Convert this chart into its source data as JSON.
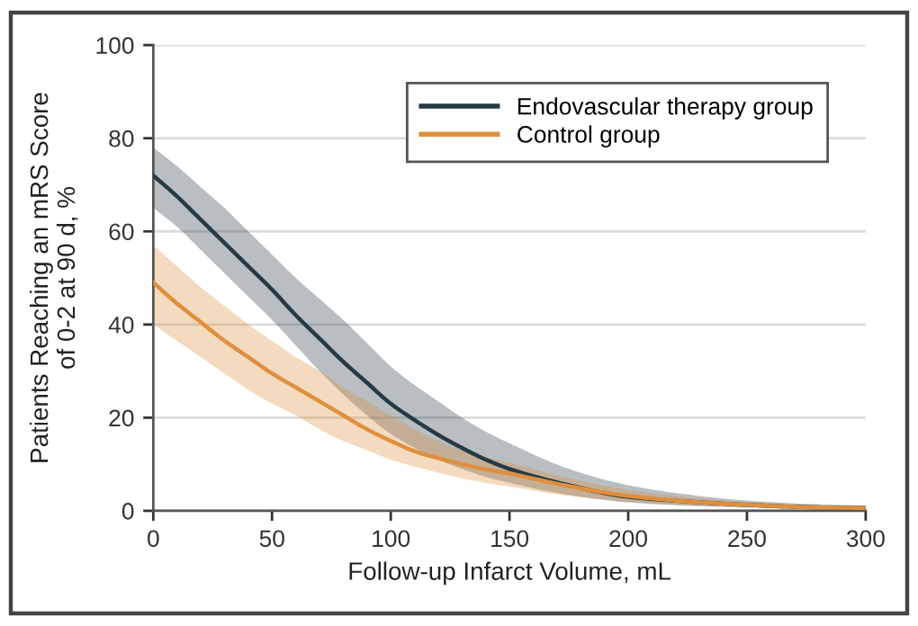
{
  "chart_data": {
    "type": "line",
    "xlabel": "Follow-up Infarct Volume, mL",
    "ylabel": "Patients Reaching an mRS Score\nof 0-2 at 90 d, %",
    "x": [
      0,
      10,
      20,
      30,
      40,
      50,
      60,
      70,
      80,
      90,
      100,
      110,
      120,
      130,
      140,
      150,
      175,
      200,
      225,
      250,
      275,
      300
    ],
    "series": [
      {
        "name": "Endovascular therapy group",
        "color": "#263a45",
        "values": [
          72,
          67.5,
          62.5,
          57.5,
          52.5,
          47.5,
          42,
          37,
          32,
          27.5,
          23,
          19.5,
          16.3,
          13.5,
          11,
          9,
          5.5,
          3,
          2,
          1.3,
          0.8,
          0.6
        ],
        "lower": [
          65,
          61,
          56,
          51,
          46,
          41,
          35.5,
          30,
          25,
          20.5,
          16.5,
          13.5,
          11,
          9,
          7.3,
          6,
          3.4,
          1.8,
          1.1,
          0.7,
          0.4,
          0.3
        ],
        "upper": [
          78,
          74,
          69.5,
          65,
          60,
          55,
          50,
          45.5,
          41,
          36,
          31,
          27,
          23.5,
          20,
          17,
          14.5,
          9,
          5.5,
          3.5,
          2.2,
          1.5,
          1.1
        ]
      },
      {
        "name": "Control group",
        "color": "#df8f3e",
        "values": [
          49,
          44.5,
          40.5,
          36.5,
          33,
          29.5,
          26.5,
          23.5,
          20.5,
          17.5,
          15,
          12.8,
          11.3,
          10,
          8.9,
          8,
          5.3,
          3.2,
          2,
          1.3,
          0.8,
          0.6
        ],
        "lower": [
          40,
          36.5,
          33,
          29.5,
          26,
          23,
          20.5,
          17.5,
          15,
          13,
          11,
          9.5,
          8.2,
          7,
          6,
          5.2,
          3.2,
          2,
          1.2,
          0.8,
          0.5,
          0.3
        ],
        "upper": [
          57,
          52.5,
          48,
          44,
          40,
          36.5,
          33,
          30,
          26.5,
          23.5,
          20.5,
          17.5,
          15,
          13,
          11.5,
          10.3,
          7,
          4.5,
          2.9,
          1.9,
          1.3,
          1
        ]
      }
    ],
    "xlim": [
      0,
      300
    ],
    "xticks": [
      0,
      50,
      100,
      150,
      200,
      250,
      300
    ],
    "ylim": [
      0,
      100
    ],
    "yticks": [
      0,
      20,
      40,
      60,
      80,
      100
    ],
    "grid": "y",
    "legend": "top right"
  }
}
